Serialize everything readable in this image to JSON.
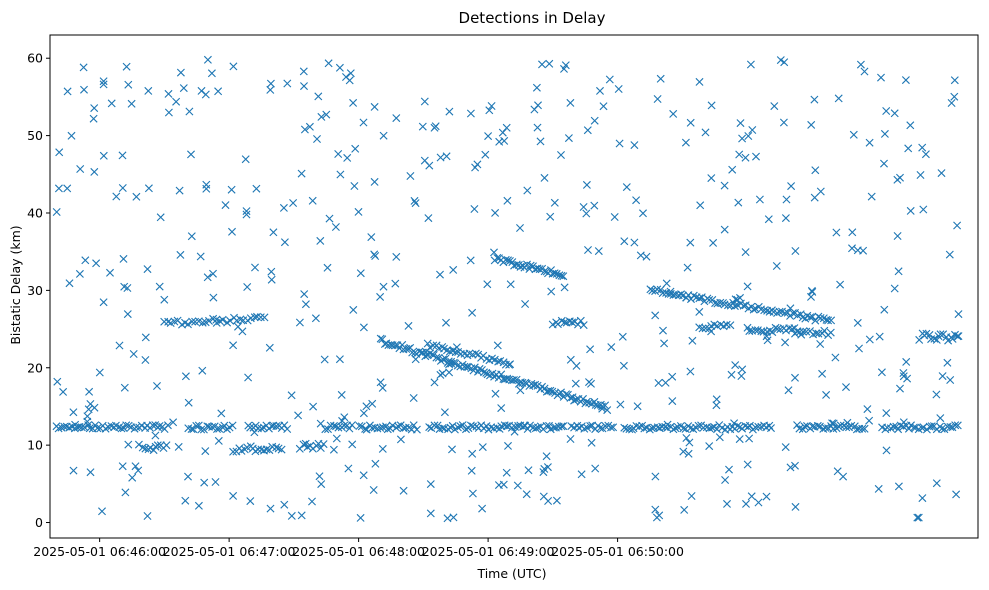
{
  "chart_data": {
    "type": "scatter",
    "title": "Detections in Delay",
    "xlabel": "Time (UTC)",
    "ylabel": "Bistatic Delay (km)",
    "marker": "x",
    "marker_color": "#1f77b4",
    "xlim_seconds": [
      -23,
      407
    ],
    "ylim": [
      -2,
      63
    ],
    "x_ticks": [
      {
        "seconds": 0,
        "label": "2025-05-01 06:46:00"
      },
      {
        "seconds": 60,
        "label": "2025-05-01 06:47:00"
      },
      {
        "seconds": 120,
        "label": "2025-05-01 06:48:00"
      },
      {
        "seconds": 180,
        "label": "2025-05-01 06:49:00"
      },
      {
        "seconds": 240,
        "label": "2025-05-01 06:50:00"
      }
    ],
    "y_ticks": [
      0,
      10,
      20,
      30,
      40,
      50,
      60
    ],
    "x_reference": "seconds after 2025-05-01 06:46:00",
    "data_range_seconds": [
      -20,
      398
    ],
    "tracks": [
      {
        "name": "steady-track-12km",
        "x_start": -20,
        "x_end": 398,
        "y_start": 12.3,
        "y_end": 12.3,
        "step": 1.2,
        "jitter": 0.3,
        "gaps": [
          [
            32,
            40
          ],
          [
            62,
            68
          ],
          [
            88,
            104
          ],
          [
            118,
            120
          ],
          [
            148,
            152
          ],
          [
            215,
            218
          ],
          [
            238,
            242
          ],
          [
            312,
            322
          ],
          [
            355,
            362
          ]
        ]
      },
      {
        "name": "track-9km-segment-a",
        "x_start": 20,
        "x_end": 31,
        "y_start": 9.6,
        "y_end": 9.6,
        "step": 1.2,
        "jitter": 0.4
      },
      {
        "name": "track-9km-segment-b",
        "x_start": 62,
        "x_end": 85,
        "y_start": 9.4,
        "y_end": 9.6,
        "step": 1.3,
        "jitter": 0.4
      },
      {
        "name": "track-9km-segment-c",
        "x_start": 93,
        "x_end": 105,
        "y_start": 9.9,
        "y_end": 9.9,
        "step": 1.2,
        "jitter": 0.4
      },
      {
        "name": "track-26km-early",
        "x_start": 30,
        "x_end": 77,
        "y_start": 25.7,
        "y_end": 26.4,
        "step": 1.6,
        "jitter": 0.3
      },
      {
        "name": "track-26km-late",
        "x_start": 300,
        "x_end": 325,
        "y_start": 24.9,
        "y_end": 24.9,
        "step": 1.3,
        "jitter": 0.3
      },
      {
        "name": "track-26km-mid",
        "x_start": 210,
        "x_end": 225,
        "y_start": 25.8,
        "y_end": 25.8,
        "step": 1.3,
        "jitter": 0.3
      },
      {
        "name": "track-25km-right",
        "x_start": 278,
        "x_end": 292,
        "y_start": 25.3,
        "y_end": 25.3,
        "step": 1.4,
        "jitter": 0.3
      },
      {
        "name": "track-24km-right",
        "x_start": 322,
        "x_end": 340,
        "y_start": 24.5,
        "y_end": 24.5,
        "step": 1.4,
        "jitter": 0.3
      },
      {
        "name": "track-24km-far-right",
        "x_start": 380,
        "x_end": 398,
        "y_start": 24.0,
        "y_end": 24.0,
        "step": 1.1,
        "jitter": 0.5
      },
      {
        "name": "descending-track-upper",
        "x_start": 130,
        "x_end": 235,
        "y_start": 23.5,
        "y_end": 14.8,
        "step": 1.0,
        "jitter": 0.3
      },
      {
        "name": "descending-track-lower",
        "x_start": 152,
        "x_end": 190,
        "y_start": 23.0,
        "y_end": 20.5,
        "step": 1.3,
        "jitter": 0.3
      },
      {
        "name": "descending-track-mid-right",
        "x_start": 183,
        "x_end": 215,
        "y_start": 34.0,
        "y_end": 32.0,
        "step": 1.0,
        "jitter": 0.3
      },
      {
        "name": "descending-track-right",
        "x_start": 255,
        "x_end": 340,
        "y_start": 30.0,
        "y_end": 26.0,
        "step": 1.2,
        "jitter": 0.3
      },
      {
        "name": "vertical-cluster-left",
        "x_start": -5,
        "x_end": -5,
        "y_start": 13.0,
        "y_end": 15.5,
        "step": 1,
        "jitter": 0.2
      }
    ],
    "clutter": {
      "count": 520,
      "x_range": [
        -20,
        398
      ],
      "y_range": [
        0.5,
        60
      ],
      "seed": 1337
    }
  }
}
